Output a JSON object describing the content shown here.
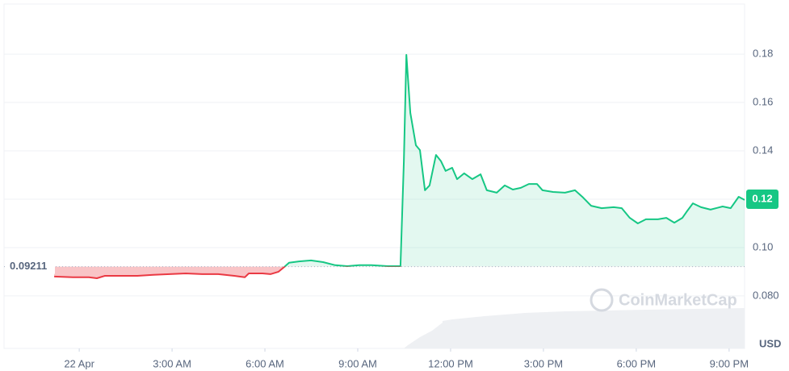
{
  "chart_data": {
    "type": "line",
    "baseline": 0.09211,
    "current_price": 0.12,
    "y_unit": "USD",
    "watermark": "CoinMarketCap",
    "colors": {
      "up": "#16c784",
      "down": "#ea3943"
    },
    "grid": true,
    "xlim": [
      -2.43,
      21.5
    ],
    "xticks": [
      {
        "value": 0,
        "label": "22 Apr"
      },
      {
        "value": 3,
        "label": "3:00 AM"
      },
      {
        "value": 6,
        "label": "6:00 AM"
      },
      {
        "value": 9,
        "label": "9:00 AM"
      },
      {
        "value": 12,
        "label": "12:00 PM"
      },
      {
        "value": 15,
        "label": "3:00 PM"
      },
      {
        "value": 18,
        "label": "6:00 PM"
      },
      {
        "value": 21,
        "label": "9:00 PM"
      }
    ],
    "ylim": [
      0.0583,
      0.2007
    ],
    "yticks": [
      {
        "value": 0.08,
        "label": "0.080"
      },
      {
        "value": 0.1,
        "label": "0.10"
      },
      0.12,
      0.14,
      0.16,
      0.18
    ],
    "x": [
      -0.81,
      -0.21,
      0.31,
      0.57,
      0.83,
      1.36,
      1.88,
      2.4,
      2.92,
      3.44,
      3.97,
      4.49,
      5.01,
      5.35,
      5.48,
      5.92,
      6.18,
      6.44,
      6.63,
      6.78,
      7.1,
      7.49,
      7.88,
      8.27,
      8.66,
      9.05,
      9.44,
      9.97,
      10.38,
      10.49,
      10.57,
      10.7,
      10.88,
      11.01,
      11.17,
      11.32,
      11.53,
      11.69,
      11.84,
      12.05,
      12.21,
      12.44,
      12.7,
      12.97,
      13.17,
      13.49,
      13.75,
      14.01,
      14.27,
      14.53,
      14.79,
      14.97,
      15.31,
      15.7,
      16.02,
      16.28,
      16.54,
      16.88,
      17.27,
      17.53,
      17.79,
      18.05,
      18.31,
      18.7,
      18.97,
      19.23,
      19.49,
      19.62,
      19.83,
      20.09,
      20.4,
      20.79,
      21.05,
      21.31,
      21.5
    ],
    "values": [
      0.088,
      0.0877,
      0.0877,
      0.0873,
      0.0883,
      0.0883,
      0.0883,
      0.0887,
      0.089,
      0.0893,
      0.089,
      0.089,
      0.0883,
      0.0877,
      0.0893,
      0.0893,
      0.089,
      0.09,
      0.092,
      0.0937,
      0.0943,
      0.0947,
      0.094,
      0.0927,
      0.0923,
      0.0927,
      0.0927,
      0.0923,
      0.0923,
      0.1357,
      0.1797,
      0.1557,
      0.1423,
      0.1403,
      0.1237,
      0.1257,
      0.1383,
      0.1357,
      0.1317,
      0.133,
      0.1283,
      0.1307,
      0.1283,
      0.1303,
      0.1237,
      0.1227,
      0.1257,
      0.124,
      0.1247,
      0.1263,
      0.1263,
      0.1237,
      0.123,
      0.1227,
      0.1237,
      0.1207,
      0.1173,
      0.1163,
      0.1167,
      0.1163,
      0.1123,
      0.11,
      0.1117,
      0.1117,
      0.1123,
      0.1103,
      0.1123,
      0.1147,
      0.1183,
      0.1167,
      0.1157,
      0.117,
      0.1163,
      0.121,
      0.1197
    ]
  }
}
